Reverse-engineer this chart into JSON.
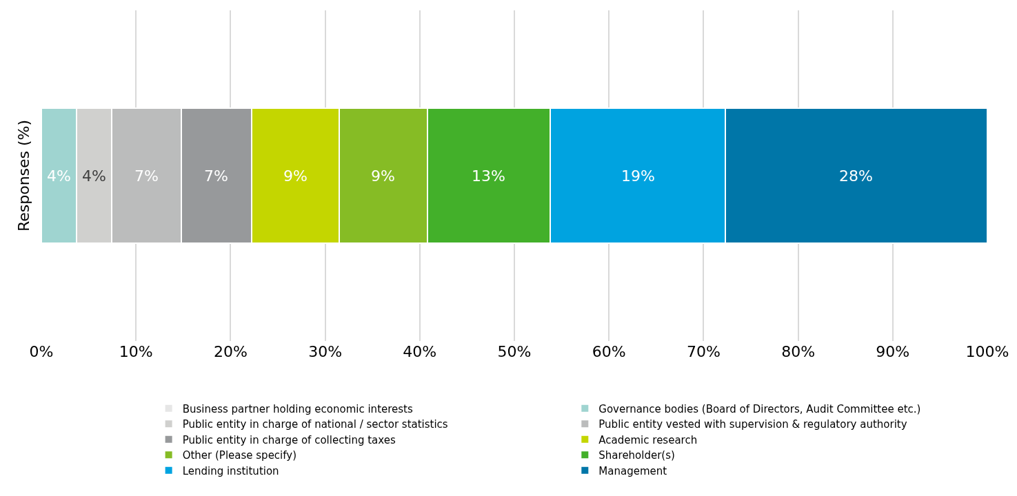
{
  "chart_data": {
    "type": "bar",
    "orientation": "horizontal",
    "stacked": true,
    "ylabel": "Responses (%)",
    "categories": [
      null
    ],
    "xlim": [
      0,
      100
    ],
    "xticks": [
      {
        "value": 0,
        "label": "0%"
      },
      {
        "value": 10,
        "label": "10%"
      },
      {
        "value": 20,
        "label": "20%"
      },
      {
        "value": 30,
        "label": "30%"
      },
      {
        "value": 40,
        "label": "40%"
      },
      {
        "value": 50,
        "label": "50%"
      },
      {
        "value": 60,
        "label": "60%"
      },
      {
        "value": 70,
        "label": "70%"
      },
      {
        "value": 80,
        "label": "80%"
      },
      {
        "value": 90,
        "label": "90%"
      },
      {
        "value": 100,
        "label": "100%"
      }
    ],
    "grid": "x",
    "legend": "bottom",
    "tick_labels": "x",
    "series": [
      {
        "name": "Business partner holding economic interests",
        "color": "#e6e6e6",
        "values": [
          0
        ],
        "value_labels": [
          null
        ]
      },
      {
        "name": "Governance bodies (Board of Directors, Audit Committee etc.)",
        "color": "#9fd4d0",
        "values": [
          3.7
        ],
        "value_labels": [
          "4%"
        ]
      },
      {
        "name": "Public entity in charge of national / sector statistics",
        "color": "#d0d0ce",
        "values": [
          3.7
        ],
        "value_labels": [
          "4%"
        ]
      },
      {
        "name": "Public entity vested with supervision & regulatory authority",
        "color": "#bbbcbc",
        "values": [
          7.4
        ],
        "value_labels": [
          "7%"
        ]
      },
      {
        "name": "Public entity in charge of collecting taxes",
        "color": "#97999b",
        "values": [
          7.4
        ],
        "value_labels": [
          "7%"
        ]
      },
      {
        "name": "Academic research",
        "color": "#c4d600",
        "values": [
          9.3
        ],
        "value_labels": [
          "9%"
        ]
      },
      {
        "name": "Other (Please specify)",
        "color": "#86bc25",
        "values": [
          9.3
        ],
        "value_labels": [
          "9%"
        ]
      },
      {
        "name": "Shareholder(s)",
        "color": "#43b02a",
        "values": [
          13
        ],
        "value_labels": [
          "13%"
        ]
      },
      {
        "name": "Lending institution",
        "color": "#00a3e0",
        "values": [
          18.5
        ],
        "value_labels": [
          "19%"
        ]
      },
      {
        "name": "Management",
        "color": "#0076a8",
        "values": [
          27.7
        ],
        "value_labels": [
          "28%"
        ]
      }
    ]
  }
}
